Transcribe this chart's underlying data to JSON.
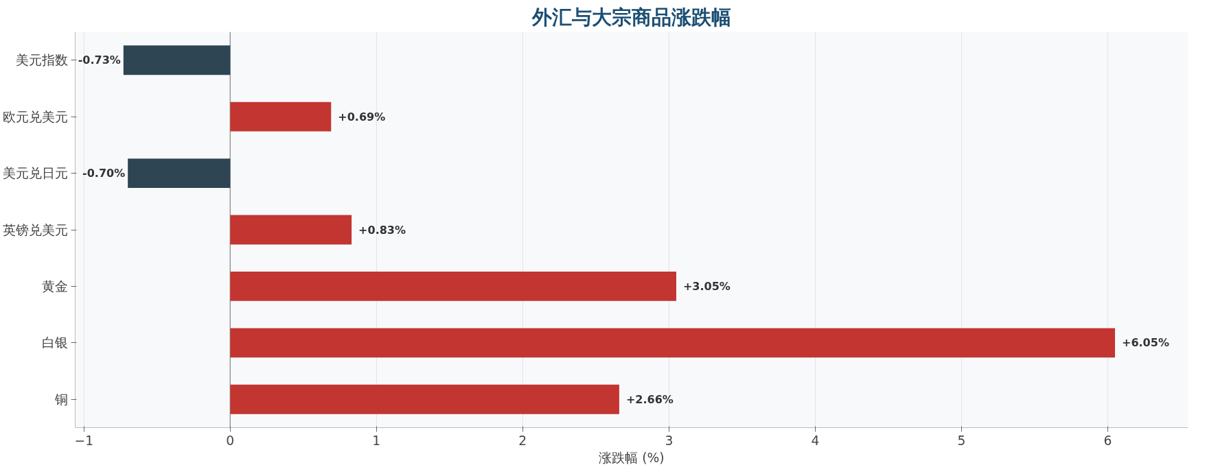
{
  "chart_data": {
    "type": "bar",
    "orientation": "horizontal",
    "title": "外汇与大宗商品涨跌幅",
    "xlabel": "涨跌幅 (%)",
    "categories": [
      "美元指数",
      "欧元兑美元",
      "美元兑日元",
      "英镑兑美元",
      "黄金",
      "白银",
      "铜"
    ],
    "values": [
      -0.73,
      0.69,
      -0.7,
      0.83,
      3.05,
      6.05,
      2.66
    ],
    "colors": [
      "#2e4553",
      "#c23531",
      "#2e4553",
      "#c23531",
      "#c23531",
      "#c23531",
      "#c23531"
    ],
    "value_labels": [
      "-0.73%",
      "+0.69%",
      "-0.70%",
      "+0.83%",
      "+3.05%",
      "+6.05%",
      "+2.66%"
    ],
    "xlim": [
      -1.06,
      6.55
    ],
    "xticks": [
      -1,
      0,
      1,
      2,
      3,
      4,
      5,
      6
    ],
    "grid": "x",
    "ref_lines": [
      {
        "axis": "x",
        "value": 0,
        "color": "#999999"
      }
    ]
  }
}
